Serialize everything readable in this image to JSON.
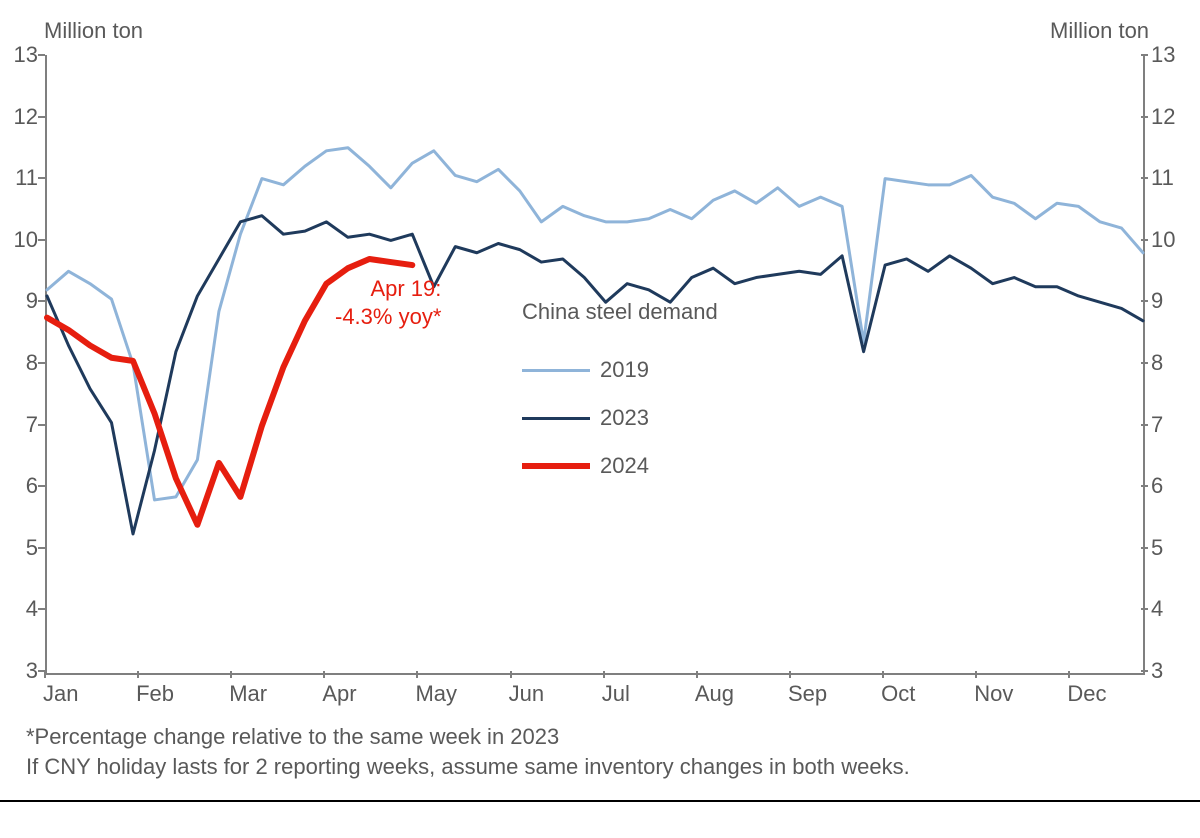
{
  "chart": {
    "type": "line",
    "background_color": "#ffffff",
    "axis_color": "#7f7f7f",
    "text_color": "#595959",
    "y_axis_title_left": "Million ton",
    "y_axis_title_right": "Million ton",
    "y_min": 3,
    "y_max": 13,
    "y_tick_step": 1,
    "y_ticks": [
      3,
      4,
      5,
      6,
      7,
      8,
      9,
      10,
      11,
      12,
      13
    ],
    "x_labels": [
      "Jan",
      "Feb",
      "Mar",
      "Apr",
      "May",
      "Jun",
      "Jul",
      "Aug",
      "Sep",
      "Oct",
      "Nov",
      "Dec"
    ],
    "x_weeks_total": 52,
    "annotation": {
      "text_line1": "Apr 19:",
      "text_line2": "-4.3% yoy*",
      "color": "#e61e0f",
      "fontsize": 22
    },
    "legend": {
      "title": "China steel demand",
      "items": [
        {
          "label": "2019",
          "color": "#8fb4d9",
          "width": 3
        },
        {
          "label": "2023",
          "color": "#1f3a5c",
          "width": 3
        },
        {
          "label": "2024",
          "color": "#e61e0f",
          "width": 6
        }
      ]
    },
    "footnote_line1": "*Percentage change relative to the same week in 2023",
    "footnote_line2": "If CNY holiday lasts for 2 reporting weeks, assume same inventory changes in both weeks.",
    "series": [
      {
        "name": "2019",
        "color": "#8fb4d9",
        "line_width": 3,
        "values": [
          9.2,
          9.5,
          9.3,
          9.05,
          8.0,
          5.8,
          5.85,
          6.45,
          8.85,
          10.1,
          11.0,
          10.9,
          11.2,
          11.45,
          11.5,
          11.2,
          10.85,
          11.25,
          11.45,
          11.05,
          10.95,
          11.15,
          10.8,
          10.3,
          10.55,
          10.4,
          10.3,
          10.3,
          10.35,
          10.5,
          10.35,
          10.65,
          10.8,
          10.6,
          10.85,
          10.55,
          10.7,
          10.55,
          8.35,
          11.0,
          10.95,
          10.9,
          10.9,
          11.05,
          10.7,
          10.6,
          10.35,
          10.6,
          10.55,
          10.3,
          10.2,
          9.8
        ]
      },
      {
        "name": "2023",
        "color": "#1f3a5c",
        "line_width": 3,
        "values": [
          9.1,
          8.3,
          7.6,
          7.05,
          5.25,
          6.6,
          8.2,
          9.1,
          9.7,
          10.3,
          10.4,
          10.1,
          10.15,
          10.3,
          10.05,
          10.1,
          10.0,
          10.1,
          9.25,
          9.9,
          9.8,
          9.95,
          9.85,
          9.65,
          9.7,
          9.4,
          9.0,
          9.3,
          9.2,
          9.0,
          9.4,
          9.55,
          9.3,
          9.4,
          9.45,
          9.5,
          9.45,
          9.75,
          8.2,
          9.6,
          9.7,
          9.5,
          9.75,
          9.55,
          9.3,
          9.4,
          9.25,
          9.25,
          9.1,
          9.0,
          8.9,
          8.7
        ]
      },
      {
        "name": "2024",
        "color": "#e61e0f",
        "line_width": 6,
        "values": [
          8.75,
          8.55,
          8.3,
          8.1,
          8.05,
          7.2,
          6.15,
          5.4,
          6.4,
          5.85,
          7.0,
          7.95,
          8.7,
          9.3,
          9.55,
          9.7,
          9.65,
          9.6
        ]
      }
    ],
    "label_fontsize": 22,
    "footnote_fontsize": 22
  }
}
